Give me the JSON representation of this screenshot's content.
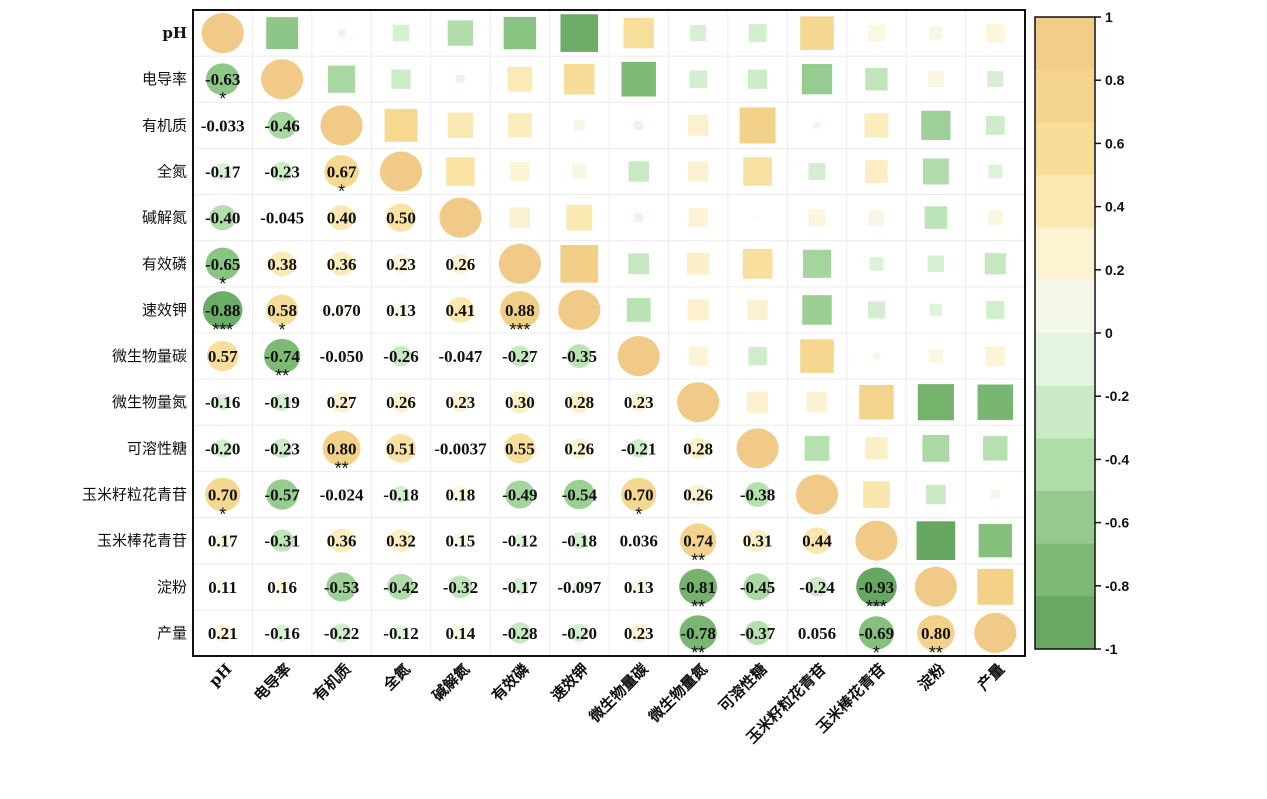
{
  "chart_data": {
    "type": "heatmap",
    "variables": [
      "pH",
      "电导率",
      "有机质",
      "全氮",
      "碱解氮",
      "有效磷",
      "速效钾",
      "微生物量碳",
      "微生物量氮",
      "可溶性糖",
      "玉米籽粒花青苷",
      "玉米棒花青苷",
      "淀粉",
      "产量"
    ],
    "lower_display": [
      [
        null,
        null,
        null,
        null,
        null,
        null,
        null,
        null,
        null,
        null,
        null,
        null,
        null,
        null
      ],
      [
        "-0.63",
        null,
        null,
        null,
        null,
        null,
        null,
        null,
        null,
        null,
        null,
        null,
        null,
        null
      ],
      [
        "-0.033",
        "-0.46",
        null,
        null,
        null,
        null,
        null,
        null,
        null,
        null,
        null,
        null,
        null,
        null
      ],
      [
        "-0.17",
        "-0.23",
        "0.67",
        null,
        null,
        null,
        null,
        null,
        null,
        null,
        null,
        null,
        null,
        null
      ],
      [
        "-0.40",
        "-0.045",
        "0.40",
        "0.50",
        null,
        null,
        null,
        null,
        null,
        null,
        null,
        null,
        null,
        null
      ],
      [
        "-0.65",
        "0.38",
        "0.36",
        "0.23",
        "0.26",
        null,
        null,
        null,
        null,
        null,
        null,
        null,
        null,
        null
      ],
      [
        "-0.88",
        "0.58",
        "0.070",
        "0.13",
        "0.41",
        "0.88",
        null,
        null,
        null,
        null,
        null,
        null,
        null,
        null
      ],
      [
        "0.57",
        "-0.74",
        "-0.050",
        "-0.26",
        "-0.047",
        "-0.27",
        "-0.35",
        null,
        null,
        null,
        null,
        null,
        null,
        null
      ],
      [
        "-0.16",
        "-0.19",
        "0.27",
        "0.26",
        "0.23",
        "0.30",
        "0.28",
        "0.23",
        null,
        null,
        null,
        null,
        null,
        null
      ],
      [
        "-0.20",
        "-0.23",
        "0.80",
        "0.51",
        "-0.0037",
        "0.55",
        "0.26",
        "-0.21",
        "0.28",
        null,
        null,
        null,
        null,
        null
      ],
      [
        "0.70",
        "-0.57",
        "-0.024",
        "-0.18",
        "0.18",
        "-0.49",
        "-0.54",
        "0.70",
        "0.26",
        "-0.38",
        null,
        null,
        null,
        null
      ],
      [
        "0.17",
        "-0.31",
        "0.36",
        "0.32",
        "0.15",
        "-0.12",
        "-0.18",
        "0.036",
        "0.74",
        "0.31",
        "0.44",
        null,
        null,
        null
      ],
      [
        "0.11",
        "0.16",
        "-0.53",
        "-0.42",
        "-0.32",
        "-0.17",
        "-0.097",
        "0.13",
        "-0.81",
        "-0.45",
        "-0.24",
        "-0.93",
        null,
        null
      ],
      [
        "0.21",
        "-0.16",
        "-0.22",
        "-0.12",
        "0.14",
        "-0.28",
        "-0.20",
        "0.23",
        "-0.78",
        "-0.37",
        "0.056",
        "-0.69",
        "0.80",
        null
      ]
    ],
    "significance": [
      [
        "",
        "",
        "",
        "",
        "",
        "",
        "",
        "",
        "",
        "",
        "",
        "",
        "",
        ""
      ],
      [
        "*",
        "",
        "",
        "",
        "",
        "",
        "",
        "",
        "",
        "",
        "",
        "",
        "",
        ""
      ],
      [
        "",
        "",
        "",
        "",
        "",
        "",
        "",
        "",
        "",
        "",
        "",
        "",
        "",
        ""
      ],
      [
        "",
        "",
        "*",
        "",
        "",
        "",
        "",
        "",
        "",
        "",
        "",
        "",
        "",
        ""
      ],
      [
        "",
        "",
        "",
        "",
        "",
        "",
        "",
        "",
        "",
        "",
        "",
        "",
        "",
        ""
      ],
      [
        "*",
        "",
        "",
        "",
        "",
        "",
        "",
        "",
        "",
        "",
        "",
        "",
        "",
        ""
      ],
      [
        "***",
        "*",
        "",
        "",
        "",
        "***",
        "",
        "",
        "",
        "",
        "",
        "",
        "",
        ""
      ],
      [
        "",
        "**",
        "",
        "",
        "",
        "",
        "",
        "",
        "",
        "",
        "",
        "",
        "",
        ""
      ],
      [
        "",
        "",
        "",
        "",
        "",
        "",
        "",
        "",
        "",
        "",
        "",
        "",
        "",
        ""
      ],
      [
        "",
        "",
        "**",
        "",
        "",
        "",
        "",
        "",
        "",
        "",
        "",
        "",
        "",
        ""
      ],
      [
        "*",
        "",
        "",
        "",
        "",
        "",
        "",
        "*",
        "",
        "",
        "",
        "",
        "",
        ""
      ],
      [
        "",
        "",
        "",
        "",
        "",
        "",
        "",
        "",
        "**",
        "",
        "",
        "",
        "",
        ""
      ],
      [
        "",
        "",
        "",
        "",
        "",
        "",
        "",
        "",
        "**",
        "",
        "",
        "***",
        "",
        ""
      ],
      [
        "",
        "",
        "",
        "",
        "",
        "",
        "",
        "",
        "**",
        "",
        "",
        "*",
        "**",
        ""
      ]
    ],
    "upper_values": [
      [
        null,
        -0.63,
        -0.033,
        -0.17,
        -0.4,
        -0.65,
        -0.88,
        0.57,
        -0.16,
        -0.2,
        0.7,
        0.17,
        0.11,
        0.21
      ],
      [
        null,
        null,
        -0.46,
        -0.23,
        -0.045,
        0.38,
        0.58,
        -0.74,
        -0.19,
        -0.23,
        -0.57,
        -0.31,
        0.16,
        -0.16
      ],
      [
        null,
        null,
        null,
        0.67,
        0.4,
        0.36,
        0.07,
        -0.05,
        0.27,
        0.8,
        -0.024,
        0.36,
        -0.53,
        -0.22
      ],
      [
        null,
        null,
        null,
        null,
        0.5,
        0.23,
        0.13,
        -0.26,
        0.26,
        0.51,
        -0.18,
        0.32,
        -0.42,
        -0.12
      ],
      [
        null,
        null,
        null,
        null,
        null,
        0.26,
        0.41,
        -0.047,
        0.23,
        -0.0037,
        0.18,
        0.15,
        -0.32,
        0.14
      ],
      [
        null,
        null,
        null,
        null,
        null,
        null,
        0.88,
        -0.27,
        0.3,
        0.55,
        -0.49,
        -0.12,
        -0.17,
        -0.28
      ],
      [
        null,
        null,
        null,
        null,
        null,
        null,
        null,
        -0.35,
        0.28,
        0.26,
        -0.54,
        -0.18,
        -0.097,
        -0.2
      ],
      [
        null,
        null,
        null,
        null,
        null,
        null,
        null,
        null,
        0.23,
        -0.21,
        0.7,
        0.036,
        0.13,
        0.23
      ],
      [
        null,
        null,
        null,
        null,
        null,
        null,
        null,
        null,
        null,
        0.28,
        0.26,
        0.74,
        -0.81,
        -0.78
      ],
      [
        null,
        null,
        null,
        null,
        null,
        null,
        null,
        null,
        null,
        null,
        -0.38,
        0.31,
        -0.45,
        -0.37
      ],
      [
        null,
        null,
        null,
        null,
        null,
        null,
        null,
        null,
        null,
        null,
        null,
        0.44,
        -0.24,
        0.056
      ],
      [
        null,
        null,
        null,
        null,
        null,
        null,
        null,
        null,
        null,
        null,
        null,
        null,
        -0.93,
        -0.69
      ],
      [
        null,
        null,
        null,
        null,
        null,
        null,
        null,
        null,
        null,
        null,
        null,
        null,
        null,
        0.8
      ],
      [
        null,
        null,
        null,
        null,
        null,
        null,
        null,
        null,
        null,
        null,
        null,
        null,
        null,
        null
      ]
    ],
    "diagonal_value": 1,
    "colorbar": {
      "ticks": [
        "1",
        "0.8",
        "0.6",
        "0.4",
        "0.2",
        "0",
        "-0.2",
        "-0.4",
        "-0.6",
        "-0.8",
        "-1"
      ],
      "range": [
        -1,
        1
      ],
      "colors": [
        "#f0c986",
        "#f3d088",
        "#f6db94",
        "#fae8b0",
        "#fdf5dc",
        "#f0fbef",
        "#d6f0d3",
        "#b9e3b4",
        "#9ad294",
        "#7dbd75",
        "#61a55b"
      ]
    },
    "lower_shape": "circle",
    "upper_shape": "square",
    "colors": {
      "positive_strong": "#f0c986",
      "negative_strong": "#5ea05a"
    }
  }
}
